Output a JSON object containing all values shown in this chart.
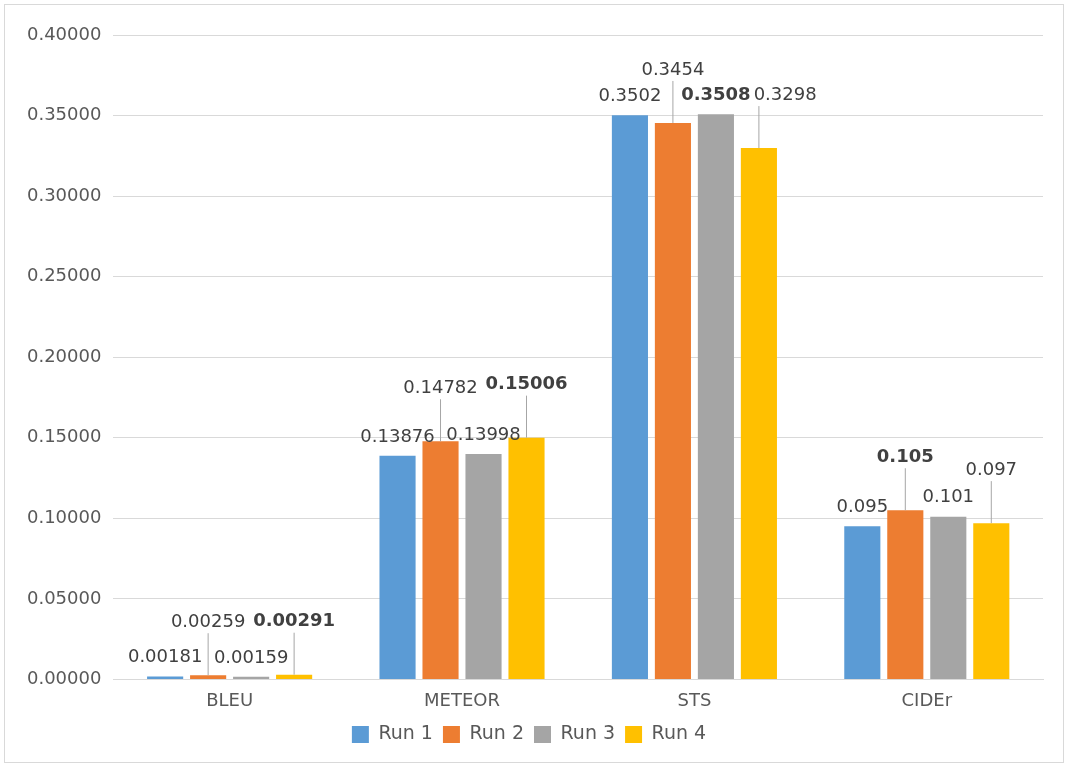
{
  "chart_data": {
    "type": "bar",
    "categories": [
      "BLEU",
      "METEOR",
      "STS",
      "CIDEr"
    ],
    "series": [
      {
        "name": "Run 1",
        "color": "#5b9bd5",
        "values": [
          0.00181,
          0.13876,
          0.3502,
          0.095
        ]
      },
      {
        "name": "Run 2",
        "color": "#ed7d31",
        "values": [
          0.00259,
          0.14782,
          0.3454,
          0.105
        ]
      },
      {
        "name": "Run 3",
        "color": "#a5a5a5",
        "values": [
          0.00159,
          0.13998,
          0.3508,
          0.101
        ]
      },
      {
        "name": "Run 4",
        "color": "#ffc000",
        "values": [
          0.00291,
          0.15006,
          0.3298,
          0.097
        ]
      }
    ],
    "ylim": [
      0,
      0.4
    ],
    "yticks": [
      {
        "value": 0,
        "label": "0.00000"
      },
      {
        "value": 0.05,
        "label": "0.05000"
      },
      {
        "value": 0.1,
        "label": "0.10000"
      },
      {
        "value": 0.15,
        "label": "0.15000"
      },
      {
        "value": 0.2,
        "label": "0.20000"
      },
      {
        "value": 0.25,
        "label": "0.25000"
      },
      {
        "value": 0.3,
        "label": "0.30000"
      },
      {
        "value": 0.35,
        "label": "0.35000"
      },
      {
        "value": 0.4,
        "label": "0.40000"
      }
    ],
    "grid": "y",
    "legend": "bottom",
    "data_labels": true
  }
}
